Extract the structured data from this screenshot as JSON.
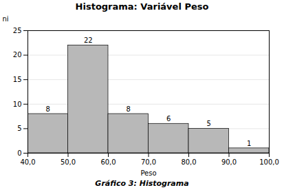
{
  "chart_data": {
    "type": "histogram",
    "title": "Histograma: Variável Peso",
    "xlabel": "Peso",
    "ylabel": "ni",
    "caption": "Gráfico 3: Histograma",
    "bins": [
      40.0,
      50.0,
      60.0,
      70.0,
      80.0,
      90.0,
      100.0
    ],
    "values": [
      8,
      22,
      8,
      6,
      5,
      1
    ],
    "color": "#b8b8b8",
    "xlim": [
      40.0,
      100.0
    ],
    "xticks": [
      {
        "value": 40.0,
        "label": "40,0"
      },
      {
        "value": 50.0,
        "label": "50,0"
      },
      {
        "value": 60.0,
        "label": "60,0"
      },
      {
        "value": 70.0,
        "label": "70,0"
      },
      {
        "value": 80.0,
        "label": "80,0"
      },
      {
        "value": 90.0,
        "label": "90,0"
      },
      {
        "value": 100.0,
        "label": "100,0"
      }
    ],
    "ylim": [
      0,
      25
    ],
    "yticks": [
      0,
      5,
      10,
      15,
      20,
      25
    ],
    "grid": true,
    "data_labels": true
  }
}
